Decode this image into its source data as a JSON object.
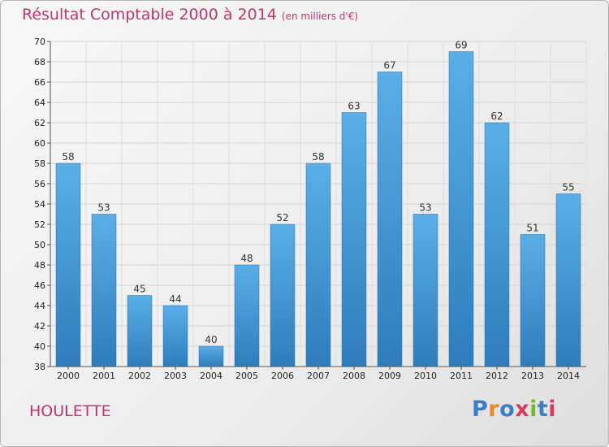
{
  "title": "Résultat Comptable 2000 à 2014",
  "subtitle": "(en milliers d'€)",
  "commune": "HOULETTE",
  "brand": {
    "text": "Proxiti",
    "letter_colors": [
      "#3a7fc4",
      "#e8882a",
      "#3a7fc4",
      "#d83c5a",
      "#76b82a",
      "#3a7fc4",
      "#d83c5a"
    ]
  },
  "colors": {
    "bar_top": "#5aaee6",
    "bar_bottom": "#2f7dbd",
    "title": "#c0346e"
  },
  "chart_data": {
    "type": "bar",
    "categories": [
      "2000",
      "2001",
      "2002",
      "2003",
      "2004",
      "2005",
      "2006",
      "2007",
      "2008",
      "2009",
      "2010",
      "2011",
      "2012",
      "2013",
      "2014"
    ],
    "values": [
      58,
      53,
      45,
      44,
      40,
      48,
      52,
      58,
      63,
      67,
      53,
      69,
      62,
      51,
      55
    ],
    "ylim": [
      38,
      70
    ],
    "yticks": [
      38,
      40,
      42,
      44,
      46,
      48,
      50,
      52,
      54,
      56,
      58,
      60,
      62,
      64,
      66,
      68,
      70
    ],
    "grid": true,
    "title": "Résultat Comptable 2000 à 2014",
    "subtitle": "(en milliers d'€)"
  }
}
